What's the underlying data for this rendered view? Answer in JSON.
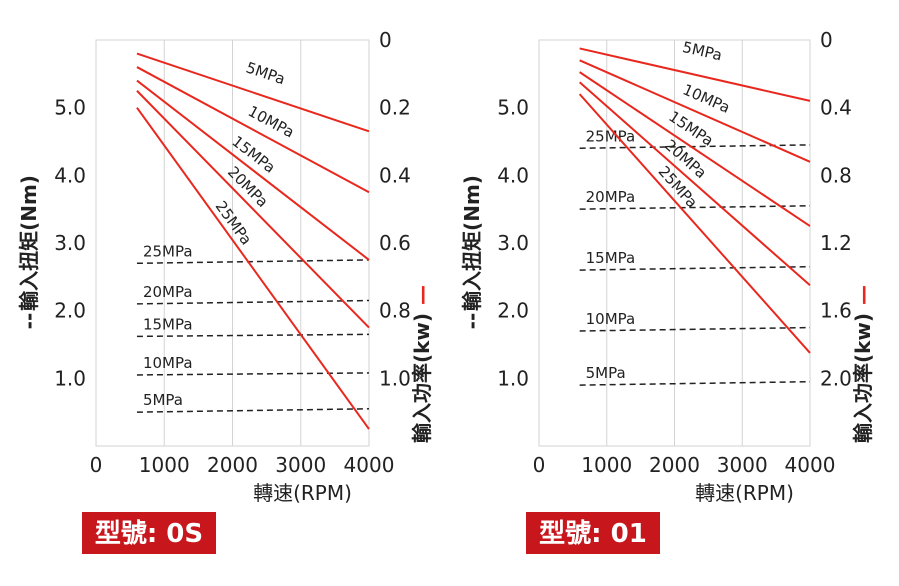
{
  "colors": {
    "power": "#e8281e",
    "torque": "#222222",
    "badge": "#c8161d",
    "grid": "#d3d3d3"
  },
  "chart_data": [
    {
      "type": "line",
      "title": "",
      "badge": "型號: 0S",
      "xlabel": "轉速(RPM)",
      "ylabel_left": "輸入扭矩(Nm)",
      "ylabel_left_marker": "--",
      "ylabel_right": "輸入功率(kw)",
      "ylabel_right_marker": "—",
      "xlim": [
        0,
        4000
      ],
      "xticks": [
        "0",
        "1000",
        "2000",
        "3000",
        "4000"
      ],
      "ylim_left": [
        0,
        6
      ],
      "yticks_left": [
        "1.0",
        "2.0",
        "3.0",
        "4.0",
        "5.0"
      ],
      "ylim_right": [
        0,
        1.2
      ],
      "yticks_right": [
        "0",
        "0.2",
        "0.4",
        "0.6",
        "0.8",
        "1.0"
      ],
      "right_axis_inverted": true,
      "grid": true,
      "power_series": [
        {
          "name": "5MPa",
          "x": [
            600,
            4000
          ],
          "y": [
            0.04,
            0.27
          ]
        },
        {
          "name": "10MPa",
          "x": [
            600,
            4000
          ],
          "y": [
            0.08,
            0.45
          ]
        },
        {
          "name": "15MPa",
          "x": [
            600,
            4000
          ],
          "y": [
            0.12,
            0.65
          ]
        },
        {
          "name": "20MPa",
          "x": [
            600,
            4000
          ],
          "y": [
            0.15,
            0.85
          ]
        },
        {
          "name": "25MPa",
          "x": [
            600,
            4000
          ],
          "y": [
            0.2,
            1.15
          ]
        }
      ],
      "torque_series": [
        {
          "name": "25MPa",
          "x": [
            600,
            4000
          ],
          "y": [
            2.7,
            2.75
          ]
        },
        {
          "name": "20MPa",
          "x": [
            600,
            4000
          ],
          "y": [
            2.1,
            2.15
          ]
        },
        {
          "name": "15MPa",
          "x": [
            600,
            4000
          ],
          "y": [
            1.62,
            1.65
          ]
        },
        {
          "name": "10MPa",
          "x": [
            600,
            4000
          ],
          "y": [
            1.05,
            1.08
          ]
        },
        {
          "name": "5MPa",
          "x": [
            600,
            4000
          ],
          "y": [
            0.5,
            0.55
          ]
        }
      ]
    },
    {
      "type": "line",
      "title": "",
      "badge": "型號: 01",
      "xlabel": "轉速(RPM)",
      "ylabel_left": "輸入扭矩(Nm)",
      "ylabel_left_marker": "--",
      "ylabel_right": "輸入功率(kw)",
      "ylabel_right_marker": "—",
      "xlim": [
        0,
        4000
      ],
      "xticks": [
        "0",
        "1000",
        "2000",
        "3000",
        "4000"
      ],
      "ylim_left": [
        0,
        6
      ],
      "yticks_left": [
        "1.0",
        "2.0",
        "3.0",
        "4.0",
        "5.0"
      ],
      "ylim_right": [
        0,
        2.4
      ],
      "yticks_right": [
        "0",
        "0.4",
        "0.8",
        "1.2",
        "1.6",
        "2.0"
      ],
      "right_axis_inverted": true,
      "grid": true,
      "power_series": [
        {
          "name": "5MPa",
          "x": [
            600,
            4000
          ],
          "y": [
            0.05,
            0.36
          ]
        },
        {
          "name": "10MPa",
          "x": [
            600,
            4000
          ],
          "y": [
            0.12,
            0.72
          ]
        },
        {
          "name": "15MPa",
          "x": [
            600,
            4000
          ],
          "y": [
            0.19,
            1.1
          ]
        },
        {
          "name": "20MPa",
          "x": [
            600,
            4000
          ],
          "y": [
            0.25,
            1.45
          ]
        },
        {
          "name": "25MPa",
          "x": [
            600,
            4000
          ],
          "y": [
            0.32,
            1.85
          ]
        }
      ],
      "torque_series": [
        {
          "name": "25MPa",
          "x": [
            600,
            4000
          ],
          "y": [
            4.4,
            4.45
          ]
        },
        {
          "name": "20MPa",
          "x": [
            600,
            4000
          ],
          "y": [
            3.5,
            3.55
          ]
        },
        {
          "name": "15MPa",
          "x": [
            600,
            4000
          ],
          "y": [
            2.6,
            2.65
          ]
        },
        {
          "name": "10MPa",
          "x": [
            600,
            4000
          ],
          "y": [
            1.7,
            1.75
          ]
        },
        {
          "name": "5MPa",
          "x": [
            600,
            4000
          ],
          "y": [
            0.9,
            0.95
          ]
        }
      ]
    }
  ]
}
